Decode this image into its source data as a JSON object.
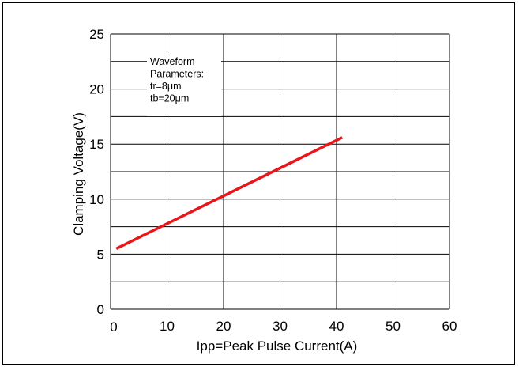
{
  "chart_data": {
    "type": "line",
    "xlabel": "Ipp=Peak Pulse Current(A)",
    "ylabel": "Clamping Voltage(V)",
    "xlim": [
      0,
      60
    ],
    "ylim": [
      0,
      25
    ],
    "x_ticks": [
      10,
      20,
      30,
      40,
      50,
      60
    ],
    "y_ticks": [
      0,
      5,
      10,
      15,
      20,
      25
    ],
    "x_zero_label": "0",
    "grid": true,
    "minor_y_grid_step": 2.5,
    "series": [
      {
        "color": "#e8161b",
        "x": [
          1,
          41
        ],
        "y": [
          5.5,
          15.6
        ]
      }
    ],
    "annotation": {
      "lines": [
        "Waveform",
        "Parameters:",
        "tr=8μm",
        "tb=20μm"
      ]
    }
  }
}
